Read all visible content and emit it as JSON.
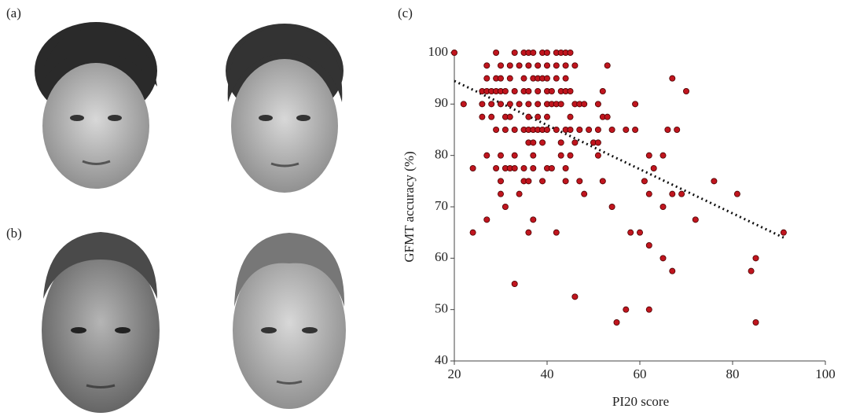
{
  "panels": {
    "a": "(a)",
    "b": "(b)",
    "c": "(c)"
  },
  "chart_data": {
    "type": "scatter",
    "xlabel": "PI20 score",
    "ylabel": "GFMT accuracy (%)",
    "color": "#c0151e",
    "xlim": [
      20,
      100
    ],
    "xticks": [
      20,
      40,
      60,
      80,
      100
    ],
    "ylim": [
      40,
      100
    ],
    "yticks": [
      40,
      50,
      60,
      70,
      80,
      90,
      100
    ],
    "trend_line": {
      "x": [
        20,
        91
      ],
      "y": [
        94.5,
        64
      ]
    },
    "x": [
      20,
      29,
      33,
      35,
      36,
      37,
      39,
      40,
      42,
      43,
      44,
      45,
      27,
      30,
      32,
      34,
      36,
      38,
      40,
      42,
      44,
      46,
      53,
      27,
      29,
      30,
      32,
      35,
      37,
      38,
      39,
      40,
      42,
      44,
      67,
      26,
      27,
      28,
      29,
      30,
      31,
      33,
      35,
      36,
      38,
      40,
      41,
      43,
      44,
      45,
      52,
      70,
      22,
      26,
      28,
      30,
      32,
      34,
      36,
      38,
      40,
      41,
      42,
      43,
      46,
      47,
      48,
      51,
      59,
      26,
      28,
      31,
      32,
      36,
      38,
      40,
      45,
      52,
      53,
      29,
      31,
      33,
      35,
      36,
      37,
      38,
      39,
      40,
      42,
      44,
      45,
      47,
      49,
      51,
      54,
      57,
      59,
      66,
      68,
      36,
      37,
      39,
      43,
      46,
      50,
      51,
      27,
      30,
      33,
      37,
      43,
      45,
      51,
      62,
      65,
      24,
      29,
      31,
      32,
      33,
      35,
      37,
      40,
      41,
      44,
      63,
      30,
      35,
      36,
      39,
      44,
      47,
      52,
      61,
      76,
      30,
      34,
      48,
      62,
      67,
      69,
      81,
      31,
      54,
      65,
      27,
      37,
      72,
      24,
      36,
      42,
      58,
      60,
      91,
      62,
      65,
      85,
      67,
      84,
      33,
      46,
      57,
      62,
      55,
      85
    ],
    "values": [
      100,
      100,
      100,
      100,
      100,
      100,
      100,
      100,
      100,
      100,
      100,
      100,
      97.5,
      97.5,
      97.5,
      97.5,
      97.5,
      97.5,
      97.5,
      97.5,
      97.5,
      97.5,
      97.5,
      95,
      95,
      95,
      95,
      95,
      95,
      95,
      95,
      95,
      95,
      95,
      95,
      92.5,
      92.5,
      92.5,
      92.5,
      92.5,
      92.5,
      92.5,
      92.5,
      92.5,
      92.5,
      92.5,
      92.5,
      92.5,
      92.5,
      92.5,
      92.5,
      92.5,
      90,
      90,
      90,
      90,
      90,
      90,
      90,
      90,
      90,
      90,
      90,
      90,
      90,
      90,
      90,
      90,
      90,
      87.5,
      87.5,
      87.5,
      87.5,
      87.5,
      87.5,
      87.5,
      87.5,
      87.5,
      87.5,
      85,
      85,
      85,
      85,
      85,
      85,
      85,
      85,
      85,
      85,
      85,
      85,
      85,
      85,
      85,
      85,
      85,
      85,
      85,
      85,
      82.5,
      82.5,
      82.5,
      82.5,
      82.5,
      82.5,
      82.5,
      80,
      80,
      80,
      80,
      80,
      80,
      80,
      80,
      80,
      77.5,
      77.5,
      77.5,
      77.5,
      77.5,
      77.5,
      77.5,
      77.5,
      77.5,
      77.5,
      77.5,
      75,
      75,
      75,
      75,
      75,
      75,
      75,
      75,
      75,
      72.5,
      72.5,
      72.5,
      72.5,
      72.5,
      72.5,
      72.5,
      70,
      70,
      70,
      67.5,
      67.5,
      67.5,
      65,
      65,
      65,
      65,
      65,
      65,
      62.5,
      60,
      60,
      57.5,
      57.5,
      55,
      52.5,
      50,
      50,
      47.5,
      47.5
    ]
  }
}
